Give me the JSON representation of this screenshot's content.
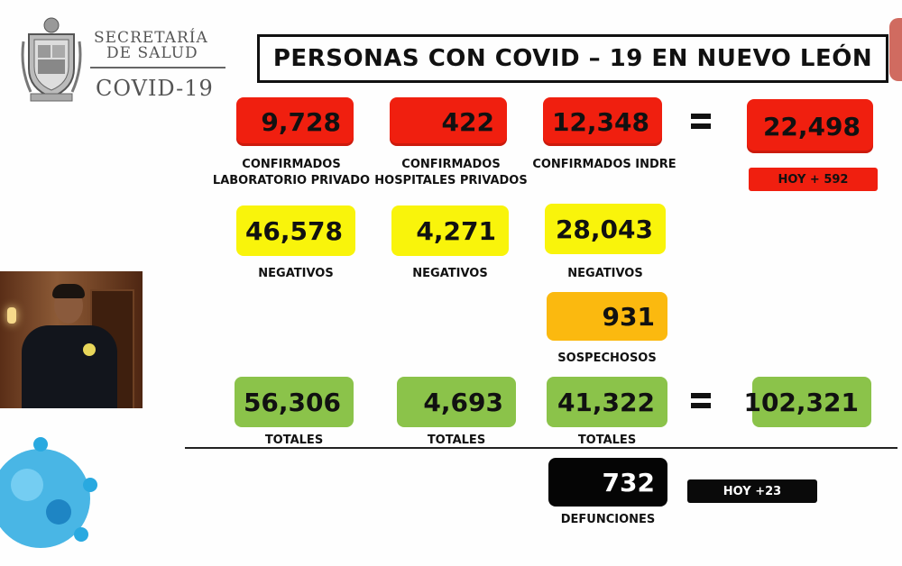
{
  "header": {
    "org_line1": "SECRETARÍA",
    "org_line2": "DE SALUD",
    "org_line3": "COVID-19",
    "title": "PERSONAS CON COVID – 19 EN NUEVO LEÓN"
  },
  "confirmados": {
    "privado": {
      "value": "9,728",
      "label_line1": "CONFIRMADOS",
      "label_line2": "LABORATORIO PRIVADO"
    },
    "hospitales": {
      "value": "422",
      "label_line1": "CONFIRMADOS",
      "label_line2": "HOSPITALES PRIVADOS"
    },
    "indre": {
      "value": "12,348",
      "label": "CONFIRMADOS INDRE"
    },
    "total": {
      "value": "22,498",
      "hoy": "HOY + 592"
    }
  },
  "negativos": {
    "privado": {
      "value": "46,578",
      "label": "NEGATIVOS"
    },
    "hospitales": {
      "value": "4,271",
      "label": "NEGATIVOS"
    },
    "indre": {
      "value": "28,043",
      "label": "NEGATIVOS"
    }
  },
  "sospechosos": {
    "value": "931",
    "label": "SOSPECHOSOS"
  },
  "totales": {
    "privado": {
      "value": "56,306",
      "label": "TOTALES"
    },
    "hospitales": {
      "value": "4,693",
      "label": "TOTALES"
    },
    "indre": {
      "value": "41,322",
      "label": "TOTALES"
    },
    "gran_total": {
      "value": "102,321"
    }
  },
  "defunciones": {
    "value": "732",
    "label": "DEFUNCIONES",
    "hoy": "HOY +23"
  },
  "colors": {
    "red": "#f01f0f",
    "yellow": "#f9f40b",
    "orange": "#fbb90f",
    "green": "#8bc34a",
    "black": "#050505"
  }
}
